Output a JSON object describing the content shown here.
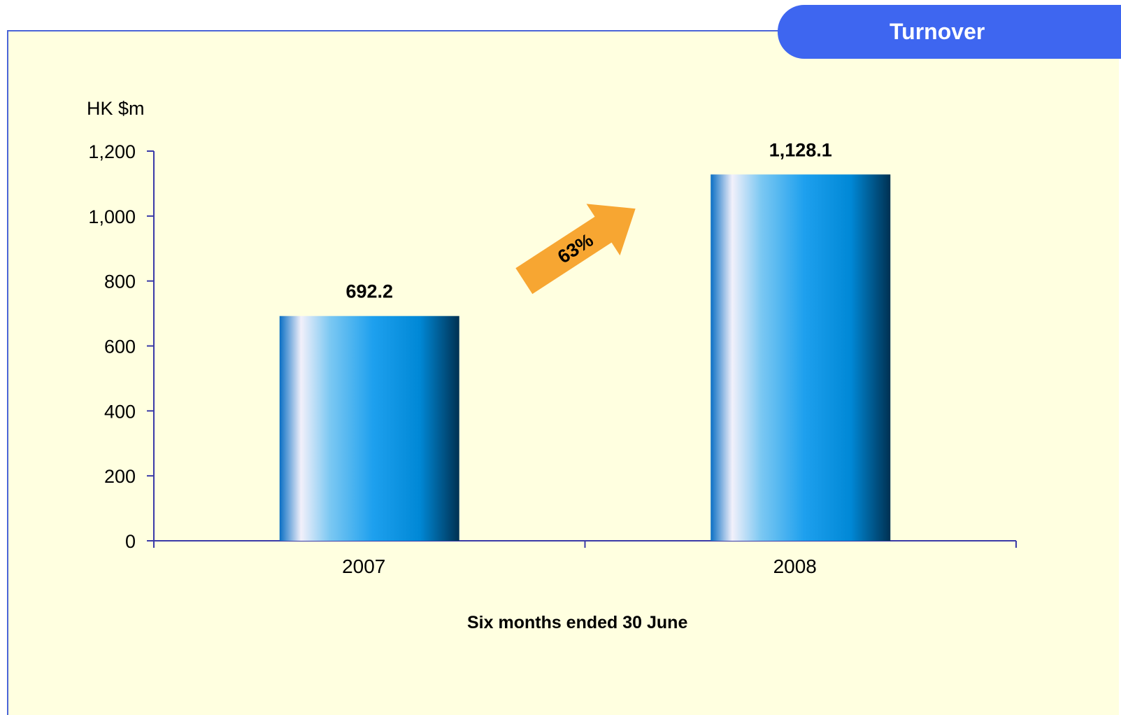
{
  "header": {
    "title": "Turnover"
  },
  "colors": {
    "panel_background": "#ffffe0",
    "panel_border": "#4a64d8",
    "title_tab": "#3e66f0",
    "axis": "#3a3aa8",
    "growth_arrow": "#f7a632",
    "bar_gradient": [
      "#0a6fc4",
      "#f2f0fa",
      "#7cc8f2",
      "#1ea0ee",
      "#0088d6",
      "#003152"
    ]
  },
  "annotation": {
    "growth_label": "63%"
  },
  "chart_data": {
    "type": "bar",
    "categories": [
      "2007",
      "2008"
    ],
    "values": [
      692.2,
      1128.1
    ],
    "data_labels": [
      "692.2",
      "1,128.1"
    ],
    "title": "",
    "ylabel": "HK $m",
    "xlabel": "Six months ended 30 June",
    "ylim": [
      0,
      1200
    ],
    "yticks": [
      0,
      200,
      400,
      600,
      800,
      1000,
      1200
    ],
    "ytick_labels": [
      "0",
      "200",
      "400",
      "600",
      "800",
      "1,000",
      "1,200"
    ],
    "grid": false,
    "legend": "none"
  }
}
